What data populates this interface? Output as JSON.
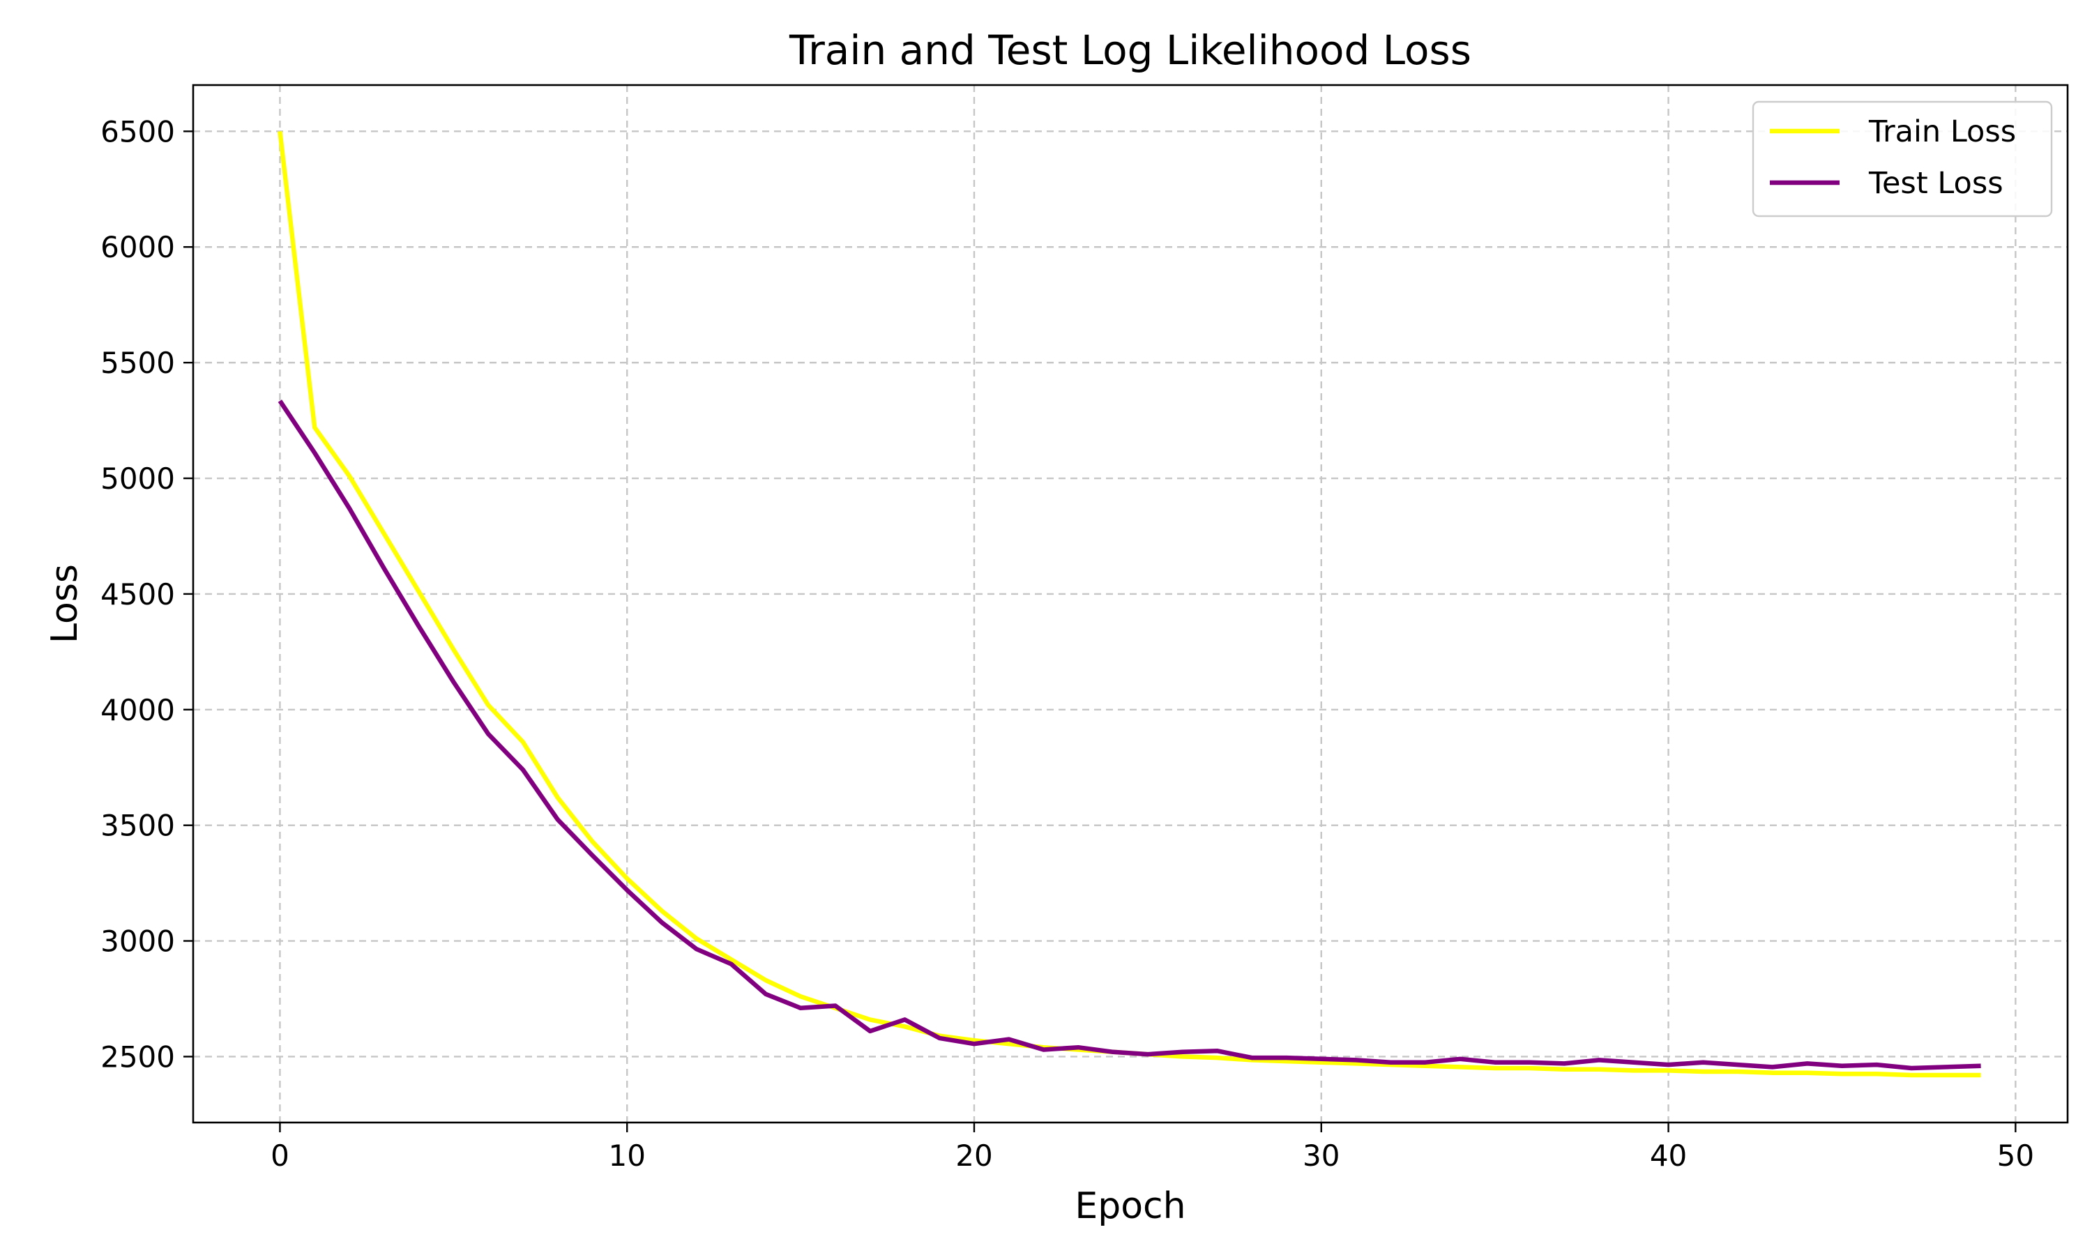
{
  "chart_data": {
    "type": "line",
    "title": "Train and Test Log Likelihood Loss",
    "xlabel": "Epoch",
    "ylabel": "Loss",
    "xlim": [
      -2.5,
      51.5
    ],
    "ylim": [
      2215,
      6700
    ],
    "x_ticks": [
      0,
      10,
      20,
      30,
      40,
      50
    ],
    "y_ticks": [
      2500,
      3000,
      3500,
      4000,
      4500,
      5000,
      5500,
      6000,
      6500
    ],
    "grid": true,
    "legend_position": "top-right",
    "x": [
      0,
      1,
      2,
      3,
      4,
      5,
      6,
      7,
      8,
      9,
      10,
      11,
      12,
      13,
      14,
      15,
      16,
      17,
      18,
      19,
      20,
      21,
      22,
      23,
      24,
      25,
      26,
      27,
      28,
      29,
      30,
      31,
      32,
      33,
      34,
      35,
      36,
      37,
      38,
      39,
      40,
      41,
      42,
      43,
      44,
      45,
      46,
      47,
      48,
      49
    ],
    "series": [
      {
        "name": "Train Loss",
        "color": "#ffff00",
        "values": [
          6500,
          5220,
          5010,
          4760,
          4510,
          4260,
          4020,
          3860,
          3620,
          3430,
          3270,
          3130,
          3010,
          2920,
          2830,
          2760,
          2710,
          2660,
          2630,
          2590,
          2570,
          2555,
          2540,
          2530,
          2520,
          2510,
          2500,
          2495,
          2485,
          2480,
          2475,
          2470,
          2465,
          2460,
          2455,
          2450,
          2450,
          2445,
          2445,
          2440,
          2440,
          2435,
          2435,
          2430,
          2430,
          2425,
          2425,
          2420,
          2420,
          2420
        ]
      },
      {
        "name": "Test Loss",
        "color": "#800080",
        "values": [
          5335,
          5110,
          4870,
          4610,
          4360,
          4120,
          3895,
          3740,
          3525,
          3370,
          3220,
          3080,
          2965,
          2900,
          2770,
          2710,
          2720,
          2610,
          2660,
          2580,
          2555,
          2575,
          2530,
          2540,
          2520,
          2510,
          2520,
          2525,
          2495,
          2495,
          2490,
          2485,
          2475,
          2475,
          2490,
          2475,
          2475,
          2470,
          2485,
          2475,
          2465,
          2475,
          2465,
          2455,
          2470,
          2460,
          2465,
          2450,
          2455,
          2460
        ]
      }
    ]
  }
}
